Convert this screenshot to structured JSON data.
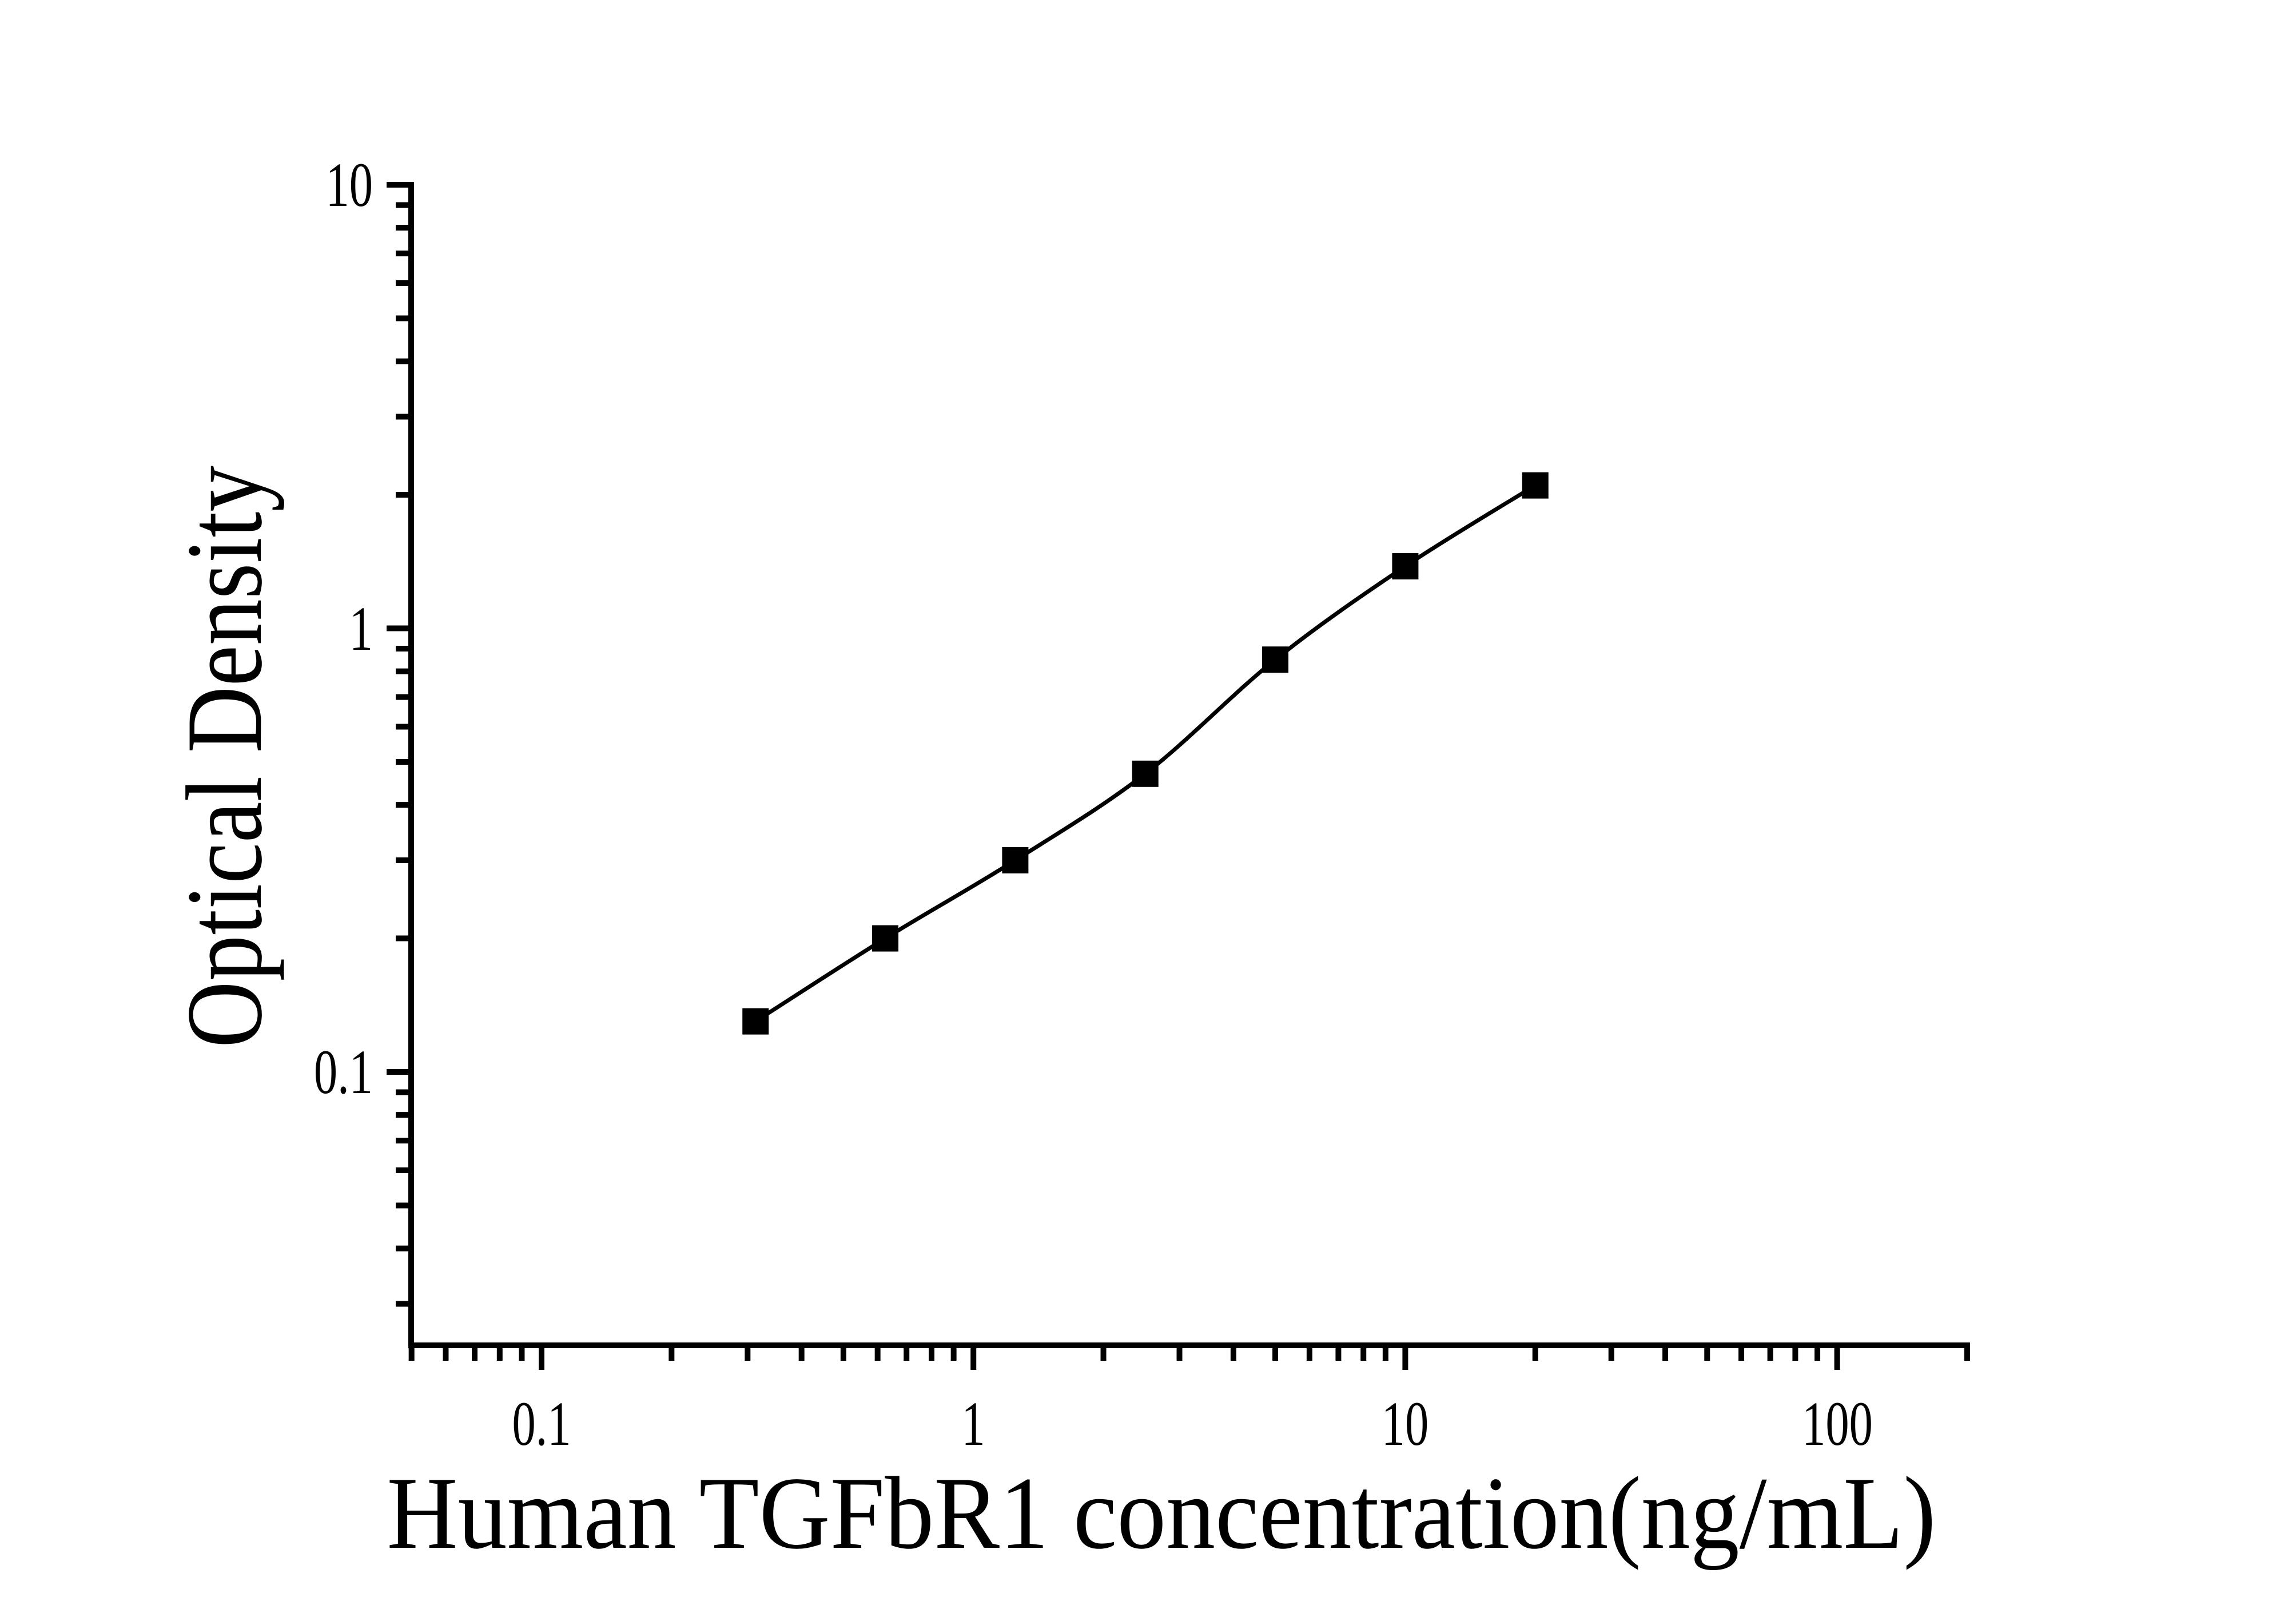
{
  "figure": {
    "background_color": "#ffffff",
    "axis_color": "#000000",
    "marker_color": "#000000",
    "curve_color": "#000000"
  },
  "chart_data": {
    "type": "line",
    "title": "",
    "xlabel": "Human TGFbR1 concentration(ng/mL)",
    "ylabel": "Optical Density",
    "x_scale": "log",
    "y_scale": "log",
    "xlim": [
      0.05,
      200
    ],
    "ylim": [
      0.024,
      10
    ],
    "grid": false,
    "legend": "none",
    "marker": "filled-square",
    "series": [
      {
        "name": "standard-curve",
        "x": [
          0.313,
          0.625,
          1.25,
          2.5,
          5,
          10,
          20
        ],
        "y": [
          0.13,
          0.2,
          0.3,
          0.47,
          0.85,
          1.38,
          2.1
        ]
      }
    ],
    "x_major_ticks": [
      0.1,
      1,
      10,
      100
    ],
    "x_major_tick_labels": [
      "0.1",
      "1",
      "10",
      "100"
    ],
    "y_major_ticks": [
      10,
      1,
      0.1
    ],
    "y_major_tick_labels": [
      "10",
      "1",
      "0.1"
    ]
  }
}
